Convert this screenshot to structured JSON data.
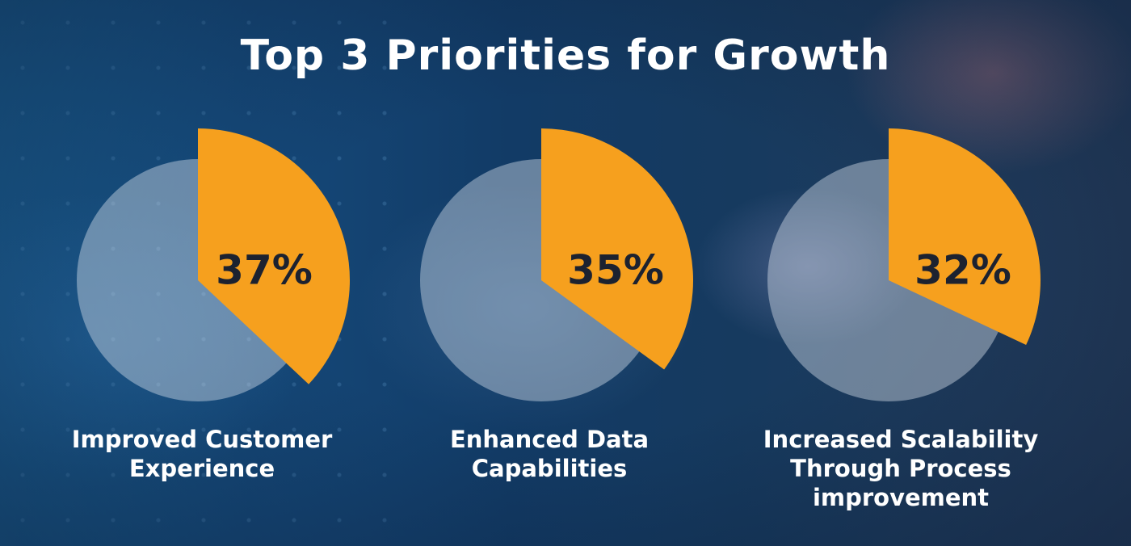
{
  "chart_data": {
    "type": "pie",
    "title": "Top 3 Priorities for Growth",
    "unit": "%",
    "categories": [
      "Improved Customer Experience",
      "Enhanced Data Capabilities",
      "Increased Scalability Through Process improvement"
    ],
    "values": [
      37,
      35,
      32
    ],
    "value_labels": [
      "37%",
      "35%",
      "32%"
    ],
    "colors": {
      "slice": "#f6a01e",
      "base": "#e1e6f0",
      "value_text": "#1c2230",
      "label_text": "#ffffff"
    }
  }
}
